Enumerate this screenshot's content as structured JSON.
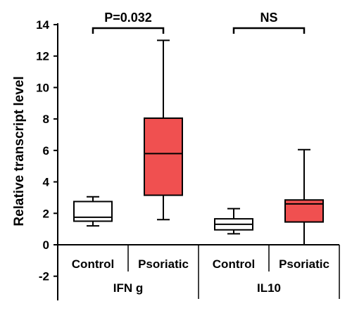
{
  "chart_data": {
    "type": "boxplot",
    "ylabel": "Relative transcript level",
    "ylim": [
      -3,
      14
    ],
    "yticks": [
      -2,
      0,
      2,
      4,
      6,
      8,
      10,
      12,
      14
    ],
    "groups": [
      {
        "label": "IFN g",
        "comparison_label": "P=0.032",
        "boxes": [
          {
            "label": "Control",
            "min": 1.2,
            "q1": 1.5,
            "median": 1.75,
            "q3": 2.75,
            "max": 3.05,
            "fill": "#ffffff"
          },
          {
            "label": "Psoriatic",
            "min": 1.6,
            "q1": 3.15,
            "median": 5.8,
            "q3": 8.05,
            "max": 13.0,
            "fill": "#f05050"
          }
        ]
      },
      {
        "label": "IL10",
        "comparison_label": "NS",
        "boxes": [
          {
            "label": "Control",
            "min": 0.7,
            "q1": 0.95,
            "median": 1.3,
            "q3": 1.65,
            "max": 2.3,
            "fill": "#ffffff"
          },
          {
            "label": "Psoriatic",
            "min": 0.0,
            "q1": 1.45,
            "median": 2.6,
            "q3": 2.85,
            "max": 6.05,
            "fill": "#f05050"
          }
        ]
      }
    ]
  }
}
